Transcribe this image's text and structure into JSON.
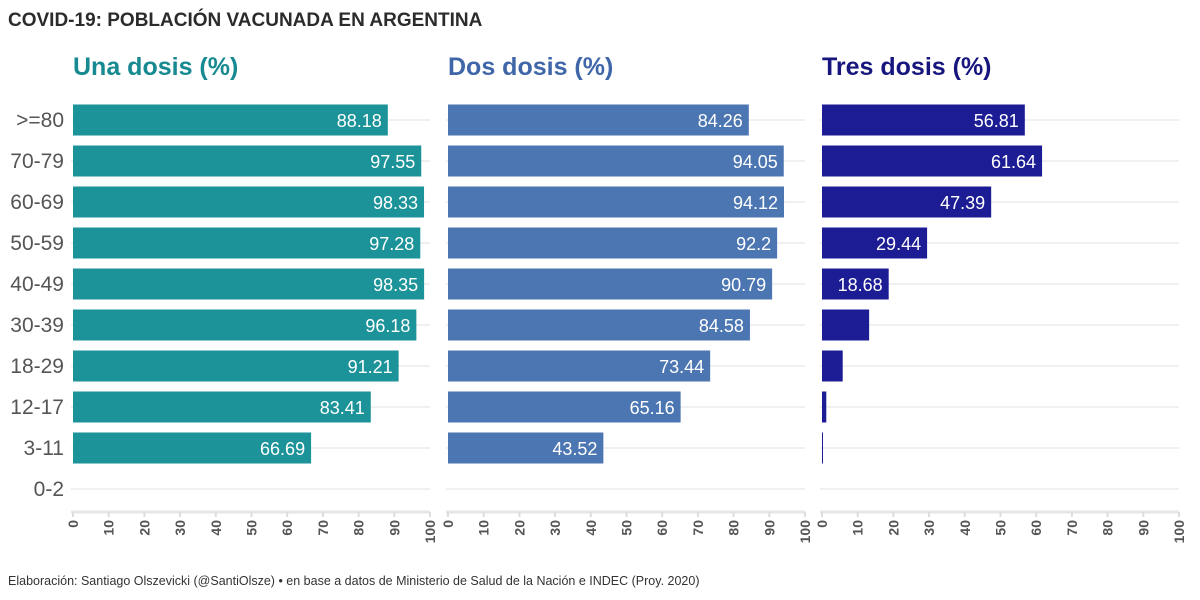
{
  "title": "COVID-19: POBLACIÓN VACUNADA EN ARGENTINA",
  "caption": "Elaboración: Santiago Olszevicki (@SantiOlsze) • en base a datos de Ministerio de Salud de la Nación e INDEC (Proy. 2020)",
  "chart_data": [
    {
      "type": "bar",
      "orientation": "horizontal",
      "title": "Una dosis (%)",
      "color": "#1b9399",
      "title_color": "#168a90",
      "categories": [
        ">=80",
        "70-79",
        "60-69",
        "50-59",
        "40-49",
        "30-39",
        "18-29",
        "12-17",
        "3-11",
        "0-2"
      ],
      "values": [
        88.18,
        97.55,
        98.33,
        97.28,
        98.35,
        96.18,
        91.21,
        83.41,
        66.69,
        0
      ],
      "labels": [
        "88.18",
        "97.55",
        "98.33",
        "97.28",
        "98.35",
        "96.18",
        "91.21",
        "83.41",
        "66.69",
        ""
      ],
      "xlim": [
        0,
        100
      ],
      "xticks": [
        0,
        10,
        20,
        30,
        40,
        50,
        60,
        70,
        80,
        90,
        100
      ],
      "grid": true
    },
    {
      "type": "bar",
      "orientation": "horizontal",
      "title": "Dos dosis (%)",
      "color": "#4c76b2",
      "title_color": "#3f66a8",
      "categories": [
        ">=80",
        "70-79",
        "60-69",
        "50-59",
        "40-49",
        "30-39",
        "18-29",
        "12-17",
        "3-11",
        "0-2"
      ],
      "values": [
        84.26,
        94.05,
        94.12,
        92.2,
        90.79,
        84.58,
        73.44,
        65.16,
        43.52,
        0
      ],
      "labels": [
        "84.26",
        "94.05",
        "94.12",
        "92.2",
        "90.79",
        "84.58",
        "73.44",
        "65.16",
        "43.52",
        ""
      ],
      "xlim": [
        0,
        100
      ],
      "xticks": [
        0,
        10,
        20,
        30,
        40,
        50,
        60,
        70,
        80,
        90,
        100
      ],
      "grid": true
    },
    {
      "type": "bar",
      "orientation": "horizontal",
      "title": "Tres dosis (%)",
      "color": "#1c1c94",
      "title_color": "#16167e",
      "categories": [
        ">=80",
        "70-79",
        "60-69",
        "50-59",
        "40-49",
        "30-39",
        "18-29",
        "12-17",
        "3-11",
        "0-2"
      ],
      "values": [
        56.81,
        61.64,
        47.39,
        29.44,
        18.68,
        13.2,
        5.8,
        1.2,
        0.2,
        0
      ],
      "labels": [
        "56.81",
        "61.64",
        "47.39",
        "29.44",
        "18.68",
        "",
        "",
        "",
        "",
        " "
      ],
      "xlim": [
        0,
        100
      ],
      "xticks": [
        0,
        10,
        20,
        30,
        40,
        50,
        60,
        70,
        80,
        90,
        100
      ],
      "grid": true
    }
  ]
}
